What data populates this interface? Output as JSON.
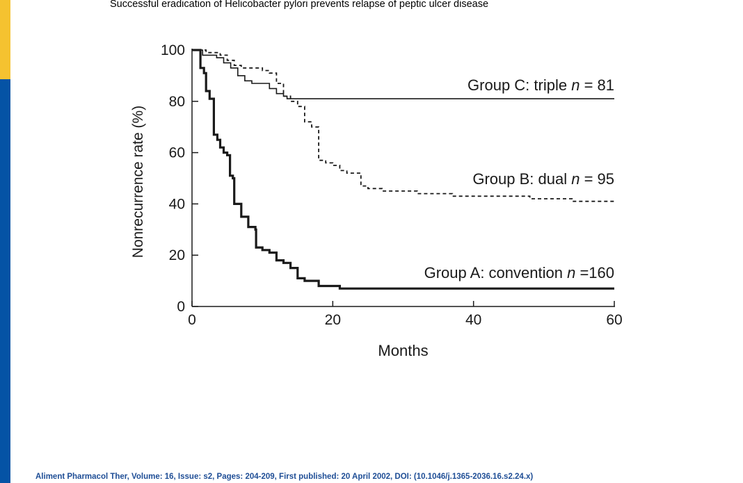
{
  "slide": {
    "title": "Successful eradication of Helicobacter pylori prevents relapse of peptic ulcer disease",
    "citation": "Aliment Pharmacol Ther, Volume: 16, Issue: s2, Pages: 204-209, First published: 20 April 2002, DOI: (10.1046/j.1365-2036.16.s2.24.x)"
  },
  "colors": {
    "accent_yellow": "#f5c230",
    "accent_blue": "#0553a5",
    "citation": "#1f4e96",
    "line": "#1a1a1a"
  },
  "chart_data": {
    "type": "line",
    "title": "",
    "xlabel": "Months",
    "ylabel": "Nonrecurrence rate (%)",
    "xlim": [
      0,
      60
    ],
    "ylim": [
      0,
      100
    ],
    "xticks": [
      0,
      20,
      40,
      60
    ],
    "yticks": [
      0,
      20,
      40,
      60,
      80,
      100
    ],
    "grid": false,
    "series": [
      {
        "name": "Group C: triple",
        "label_prefix": "Group C: triple ",
        "n_text": "n",
        "n_value": " = 81",
        "style": "solid",
        "points": [
          [
            0,
            100
          ],
          [
            1.5,
            100
          ],
          [
            1.5,
            98
          ],
          [
            3.5,
            98
          ],
          [
            3.5,
            97
          ],
          [
            4.5,
            97
          ],
          [
            4.5,
            95
          ],
          [
            5.5,
            95
          ],
          [
            5.5,
            93
          ],
          [
            6.5,
            93
          ],
          [
            6.5,
            90
          ],
          [
            7.5,
            90
          ],
          [
            7.5,
            88
          ],
          [
            8.5,
            88
          ],
          [
            8.5,
            87
          ],
          [
            11,
            87
          ],
          [
            11,
            85
          ],
          [
            12,
            85
          ],
          [
            12,
            83
          ],
          [
            13,
            83
          ],
          [
            13,
            82
          ],
          [
            13.5,
            82
          ],
          [
            13.5,
            81
          ],
          [
            60,
            81
          ]
        ]
      },
      {
        "name": "Group B: dual",
        "label_prefix": "Group B: dual ",
        "n_text": "n",
        "n_value": " = 95",
        "style": "dashed",
        "points": [
          [
            0,
            100
          ],
          [
            2,
            100
          ],
          [
            2,
            99
          ],
          [
            4,
            99
          ],
          [
            4,
            98
          ],
          [
            5,
            98
          ],
          [
            5,
            96
          ],
          [
            6,
            96
          ],
          [
            6,
            94
          ],
          [
            7,
            94
          ],
          [
            7,
            93
          ],
          [
            10,
            93
          ],
          [
            10,
            92
          ],
          [
            11,
            92
          ],
          [
            11,
            91
          ],
          [
            12,
            91
          ],
          [
            12,
            87
          ],
          [
            13,
            87
          ],
          [
            13,
            82
          ],
          [
            14,
            82
          ],
          [
            14,
            80
          ],
          [
            15,
            80
          ],
          [
            15,
            78
          ],
          [
            16,
            78
          ],
          [
            16,
            72
          ],
          [
            17,
            72
          ],
          [
            17,
            70
          ],
          [
            18,
            70
          ],
          [
            18,
            57
          ],
          [
            19,
            57
          ],
          [
            19,
            56
          ],
          [
            20,
            56
          ],
          [
            20,
            55
          ],
          [
            21,
            55
          ],
          [
            21,
            53
          ],
          [
            22,
            53
          ],
          [
            22,
            52
          ],
          [
            24,
            52
          ],
          [
            24,
            47
          ],
          [
            25,
            47
          ],
          [
            25,
            46
          ],
          [
            27,
            46
          ],
          [
            27,
            45
          ],
          [
            32,
            45
          ],
          [
            32,
            44
          ],
          [
            37,
            44
          ],
          [
            37,
            43
          ],
          [
            48,
            43
          ],
          [
            48,
            42
          ],
          [
            54,
            42
          ],
          [
            54,
            41
          ],
          [
            60,
            41
          ]
        ]
      },
      {
        "name": "Group A: convention",
        "label_prefix": "Group A: convention ",
        "n_text": "n",
        "n_value": " =160",
        "style": "bold",
        "points": [
          [
            0,
            100
          ],
          [
            1.2,
            100
          ],
          [
            1.2,
            93
          ],
          [
            1.7,
            93
          ],
          [
            1.7,
            91
          ],
          [
            2,
            91
          ],
          [
            2,
            84
          ],
          [
            2.5,
            84
          ],
          [
            2.5,
            81
          ],
          [
            3.1,
            81
          ],
          [
            3.1,
            67
          ],
          [
            3.6,
            67
          ],
          [
            3.6,
            65
          ],
          [
            4,
            65
          ],
          [
            4,
            62
          ],
          [
            4.5,
            62
          ],
          [
            4.5,
            60
          ],
          [
            5,
            60
          ],
          [
            5,
            59
          ],
          [
            5.4,
            59
          ],
          [
            5.4,
            51
          ],
          [
            5.8,
            51
          ],
          [
            5.8,
            50
          ],
          [
            6,
            50
          ],
          [
            6,
            40
          ],
          [
            7,
            40
          ],
          [
            7,
            35
          ],
          [
            8,
            35
          ],
          [
            8,
            31
          ],
          [
            9,
            31
          ],
          [
            9,
            30
          ],
          [
            9.1,
            30
          ],
          [
            9.1,
            23
          ],
          [
            10,
            23
          ],
          [
            10,
            22
          ],
          [
            11,
            22
          ],
          [
            11,
            21
          ],
          [
            12,
            21
          ],
          [
            12,
            18
          ],
          [
            13,
            18
          ],
          [
            13,
            17
          ],
          [
            14,
            17
          ],
          [
            14,
            15
          ],
          [
            15,
            15
          ],
          [
            15,
            11
          ],
          [
            16,
            11
          ],
          [
            16,
            10
          ],
          [
            18,
            10
          ],
          [
            18,
            8
          ],
          [
            21,
            8
          ],
          [
            21,
            7
          ],
          [
            60,
            7
          ]
        ]
      }
    ]
  }
}
